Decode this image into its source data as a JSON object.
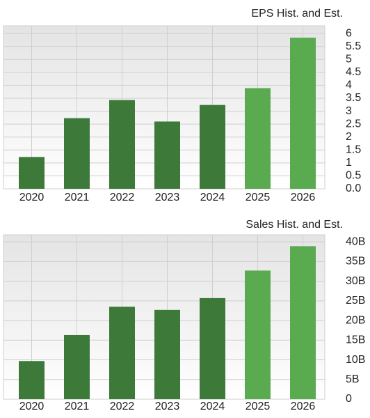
{
  "chart_data": [
    {
      "type": "bar",
      "title": "EPS Hist. and Est.",
      "categories": [
        "2020",
        "2021",
        "2022",
        "2023",
        "2024",
        "2025",
        "2026"
      ],
      "values": [
        1.23,
        2.73,
        3.43,
        2.6,
        3.24,
        3.89,
        5.84
      ],
      "colors": [
        "#3d7a3a",
        "#3d7a3a",
        "#3d7a3a",
        "#3d7a3a",
        "#3d7a3a",
        "#5aaa50",
        "#5aaa50"
      ],
      "ylim": [
        0,
        6.3
      ],
      "yticks": [
        {
          "value": 0,
          "label": "0.0"
        },
        0.5,
        1,
        1.5,
        2,
        2.5,
        3,
        3.5,
        4,
        4.5,
        5,
        5.5,
        6
      ],
      "grid": true
    },
    {
      "type": "bar",
      "title": "Sales Hist. and Est.",
      "categories": [
        "2020",
        "2021",
        "2022",
        "2023",
        "2024",
        "2025",
        "2026"
      ],
      "values": [
        9.7,
        16.3,
        23.5,
        22.7,
        25.7,
        32.7,
        38.9
      ],
      "colors": [
        "#3d7a3a",
        "#3d7a3a",
        "#3d7a3a",
        "#3d7a3a",
        "#3d7a3a",
        "#5aaa50",
        "#5aaa50"
      ],
      "ylim": [
        0,
        41.8
      ],
      "yticks": [
        0,
        {
          "value": 5,
          "label": "5B"
        },
        {
          "value": 10,
          "label": "10B"
        },
        {
          "value": 15,
          "label": "15B"
        },
        {
          "value": 20,
          "label": "20B"
        },
        {
          "value": 25,
          "label": "25B"
        },
        {
          "value": 30,
          "label": "30B"
        },
        {
          "value": 35,
          "label": "35B"
        },
        {
          "value": 40,
          "label": "40B"
        }
      ],
      "grid": true
    }
  ]
}
